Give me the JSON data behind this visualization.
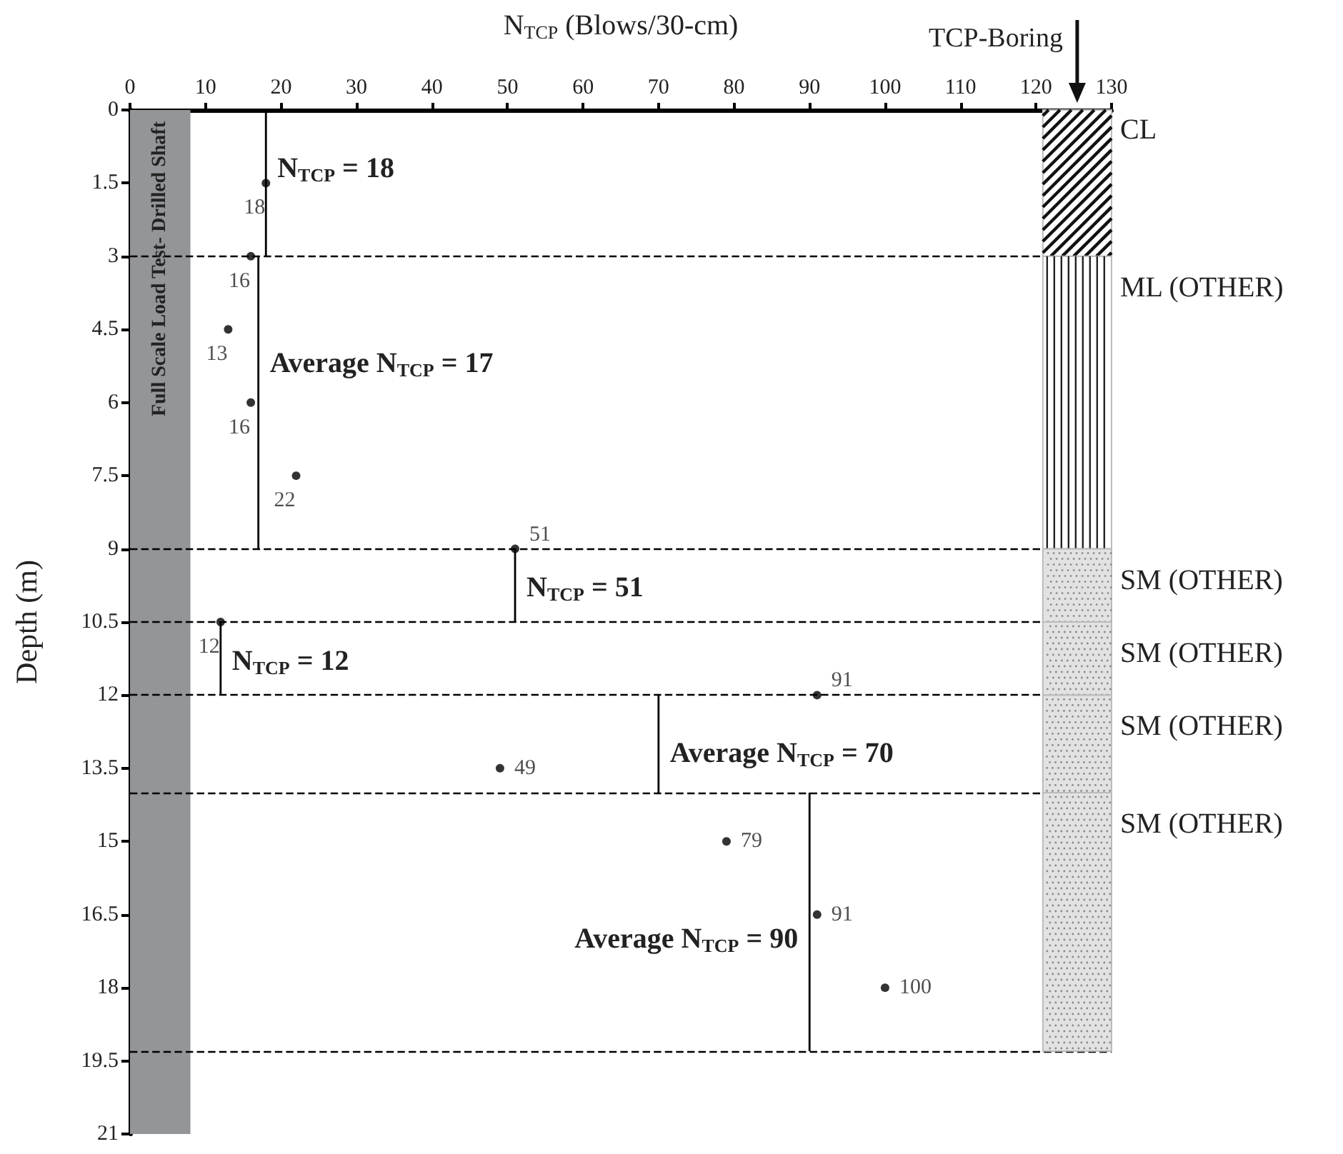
{
  "chart_data": {
    "type": "scatter",
    "orientation": "horizontal",
    "xlabel": "N$_{TCP}$ (Blows/30-cm)",
    "ylabel": "Depth (m)",
    "xlim": [
      0,
      130
    ],
    "xticks": [
      0,
      10,
      20,
      30,
      40,
      50,
      60,
      70,
      80,
      90,
      100,
      110,
      120,
      130
    ],
    "ylim": [
      21,
      0
    ],
    "yticks": [
      0,
      1.5,
      3,
      4.5,
      6,
      7.5,
      9,
      10.5,
      12,
      13.5,
      15,
      16.5,
      18,
      19.5,
      21
    ],
    "grid": false,
    "marker": "circle",
    "series": [
      {
        "color": "#000000",
        "x": [
          1.5,
          3,
          4.5,
          6,
          7.5,
          9,
          10.5,
          12,
          13.5,
          15,
          16.5,
          18
        ],
        "values": [
          18,
          16,
          13,
          16,
          22,
          51,
          12,
          91,
          49,
          79,
          91,
          100
        ],
        "value_labels": [
          "18",
          "16",
          "13",
          "16",
          "22",
          "51",
          "12",
          "91",
          "49",
          "79",
          "91",
          "100"
        ]
      },
      {
        "type": "line",
        "marker": "none",
        "color": "#000000",
        "line_style": "solid",
        "x": [
          0,
          3
        ],
        "values": [
          18,
          18
        ]
      },
      {
        "type": "line",
        "marker": "none",
        "color": "#000000",
        "line_style": "solid",
        "x": [
          3,
          9
        ],
        "values": [
          17,
          17
        ]
      },
      {
        "type": "line",
        "marker": "none",
        "color": "#000000",
        "line_style": "solid",
        "x": [
          9,
          10.5
        ],
        "values": [
          51,
          51
        ]
      },
      {
        "type": "line",
        "marker": "none",
        "color": "#000000",
        "line_style": "solid",
        "x": [
          10.5,
          12
        ],
        "values": [
          12,
          12
        ]
      },
      {
        "type": "line",
        "marker": "none",
        "color": "#000000",
        "line_style": "solid",
        "x": [
          12,
          14
        ],
        "values": [
          70,
          70
        ]
      },
      {
        "type": "line",
        "marker": "none",
        "color": "#000000",
        "line_style": "solid",
        "x": [
          14,
          19.3
        ],
        "values": [
          90,
          90
        ]
      }
    ],
    "ref_lines": [
      {
        "axis": "y",
        "value": 3,
        "color": "#000000",
        "line_style": "dashed"
      },
      {
        "axis": "y",
        "value": 9,
        "color": "#000000",
        "line_style": "dashed"
      },
      {
        "axis": "y",
        "value": 10.5,
        "color": "#000000",
        "line_style": "dashed"
      },
      {
        "axis": "y",
        "value": 12,
        "color": "#000000",
        "line_style": "dashed"
      },
      {
        "axis": "y",
        "value": 14,
        "color": "#000000",
        "line_style": "dashed"
      },
      {
        "axis": "y",
        "value": 19.3,
        "color": "#000000",
        "line_style": "dashed"
      }
    ],
    "bands": [
      {
        "axis": "x",
        "from": 0,
        "to": 8,
        "label": "Full Scale Load Test- Drilled Shaft",
        "color": "#939598"
      }
    ],
    "annotations": [
      {
        "text": "N$_{TCP}$ = 18",
        "x": 18,
        "y": 1.2
      },
      {
        "text": "Average N$_{TCP}$ = 17",
        "x": 17,
        "y": 5.2
      },
      {
        "text": "N$_{TCP}$ = 51",
        "x": 51,
        "y": 9.8
      },
      {
        "text": "N$_{TCP}$ = 12",
        "x": 12,
        "y": 11.3
      },
      {
        "text": "Average N$_{TCP}$ = 70",
        "x": 70,
        "y": 13.2
      },
      {
        "text": "Average N$_{TCP}$ = 90",
        "x": 90,
        "y": 17
      },
      "TCP-Boring",
      "CL",
      "ML (OTHER)",
      "SM (OTHER)",
      "SM (OTHER)",
      "SM (OTHER)",
      "SM (OTHER)"
    ]
  }
}
